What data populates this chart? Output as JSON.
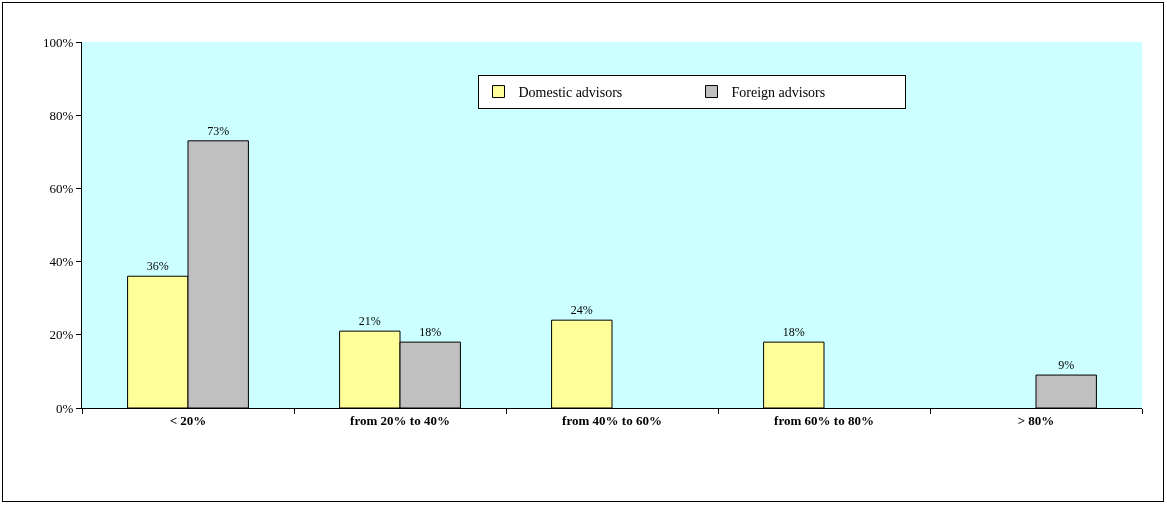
{
  "chart_data": {
    "type": "bar",
    "categories": [
      "< 20%",
      "from 20% to 40%",
      "from 40% to 60%",
      "from 60% to 80%",
      "> 80%"
    ],
    "series": [
      {
        "name": "Domestic advisors",
        "color": "#ffff99",
        "values": [
          36,
          21,
          24,
          18,
          null
        ],
        "value_labels": [
          "36%",
          "21%",
          "24%",
          "18%",
          null
        ]
      },
      {
        "name": "Foreign advisors",
        "color": "#c0c0c0",
        "values": [
          73,
          18,
          null,
          null,
          9
        ],
        "value_labels": [
          "73%",
          "18%",
          null,
          null,
          "9%"
        ]
      }
    ],
    "ylim": [
      0,
      100
    ],
    "yticks": [
      {
        "value": 0,
        "label": "0%"
      },
      {
        "value": 20,
        "label": "20%"
      },
      {
        "value": 40,
        "label": "40%"
      },
      {
        "value": 60,
        "label": "60%"
      },
      {
        "value": 80,
        "label": "80%"
      },
      {
        "value": 100,
        "label": "100%"
      }
    ],
    "grid": false,
    "legend": "top"
  }
}
